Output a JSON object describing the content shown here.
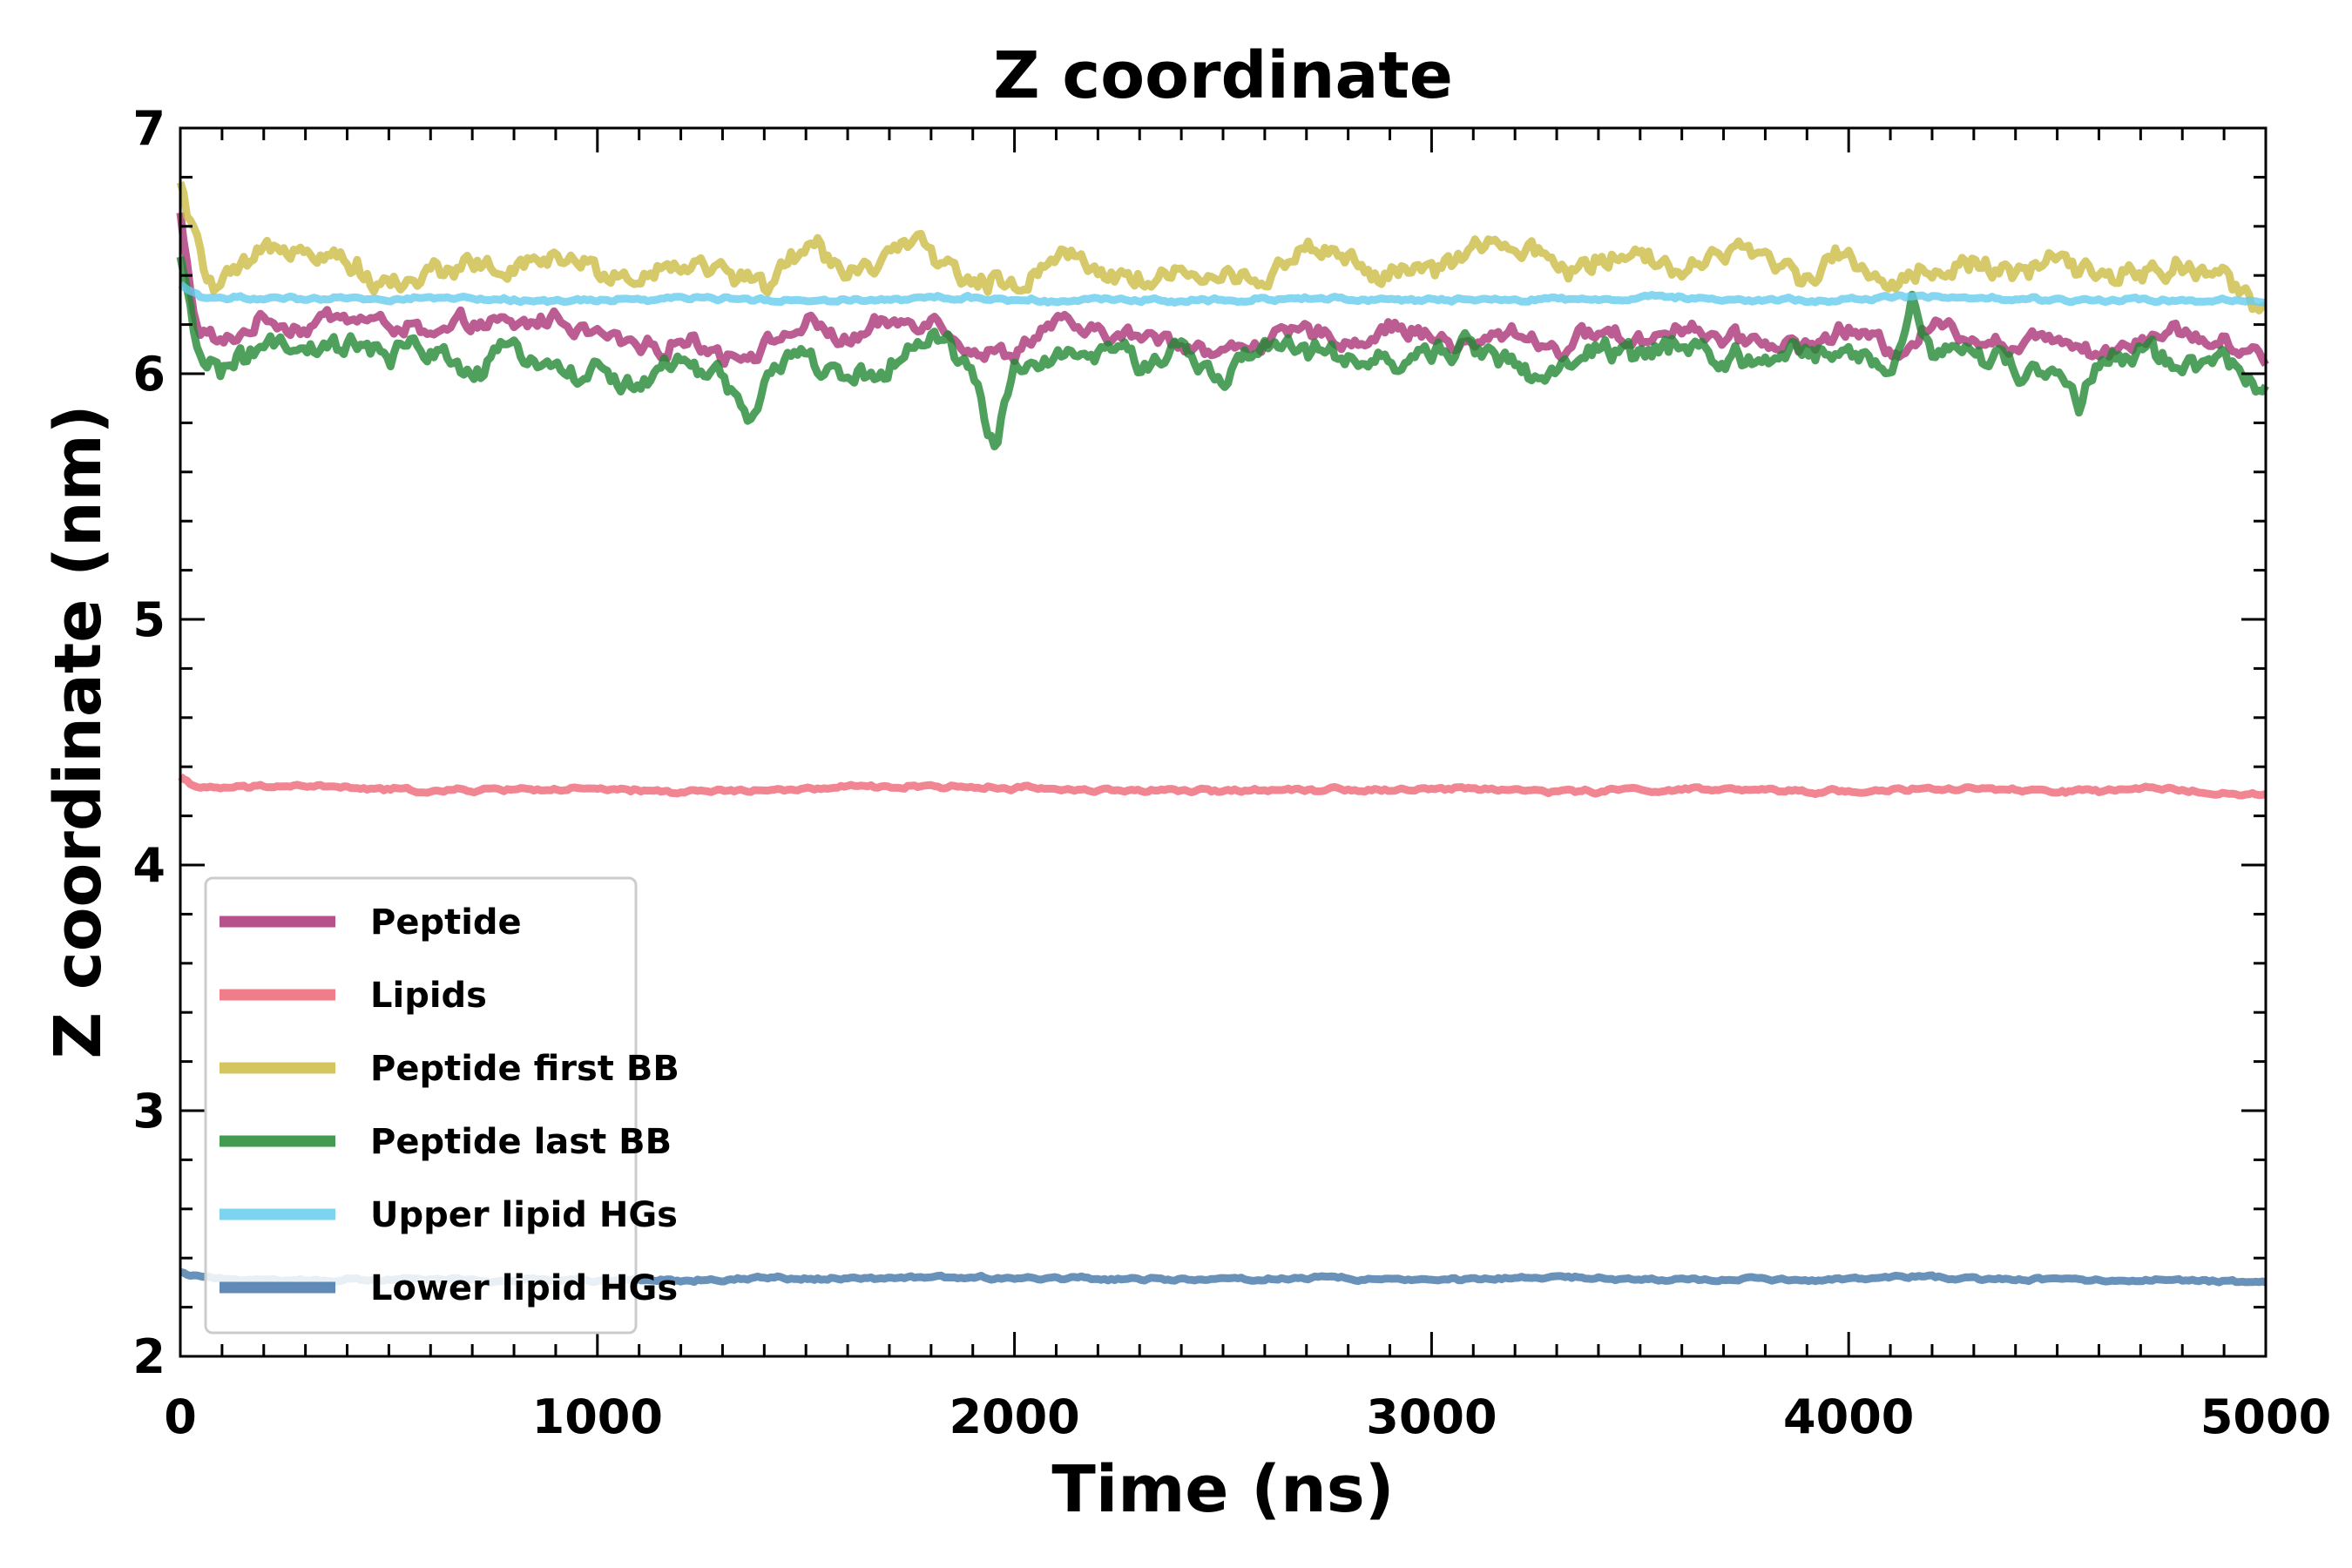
{
  "chart_data": {
    "type": "line",
    "title": "Z coordinate",
    "xlabel": "Time (ns)",
    "ylabel": "Z coordinate (nm)",
    "xlim": [
      0,
      5000
    ],
    "ylim": [
      2,
      7
    ],
    "x_ticks": [
      "0",
      "1000",
      "2000",
      "3000",
      "4000",
      "5000"
    ],
    "y_ticks": [
      "2",
      "3",
      "4",
      "5",
      "6",
      "7"
    ],
    "legend_position": "lower-left",
    "series": [
      {
        "name": "Peptide",
        "color": "#aa3377",
        "x": [
          0,
          10,
          40,
          100,
          200,
          300,
          400,
          500,
          600,
          700,
          800,
          900,
          1000,
          1100,
          1200,
          1300,
          1400,
          1500,
          1600,
          1700,
          1800,
          1900,
          2000,
          2100,
          2200,
          2300,
          2400,
          2500,
          2600,
          2700,
          2800,
          2900,
          3000,
          3100,
          3200,
          3300,
          3400,
          3500,
          3600,
          3700,
          3800,
          3900,
          4000,
          4100,
          4200,
          4300,
          4400,
          4500,
          4600,
          4700,
          4800,
          4900,
          5000
        ],
        "values": [
          6.65,
          6.5,
          6.2,
          6.12,
          6.22,
          6.18,
          6.25,
          6.2,
          6.15,
          6.2,
          6.18,
          6.23,
          6.17,
          6.12,
          6.15,
          6.08,
          6.12,
          6.2,
          6.12,
          6.18,
          6.22,
          6.1,
          6.06,
          6.2,
          6.16,
          6.15,
          6.12,
          6.09,
          6.14,
          6.16,
          6.12,
          6.18,
          6.15,
          6.12,
          6.18,
          6.1,
          6.18,
          6.12,
          6.2,
          6.16,
          6.15,
          6.12,
          6.18,
          6.1,
          6.2,
          6.16,
          6.12,
          6.18,
          6.09,
          6.15,
          6.18,
          6.12,
          6.05
        ]
      },
      {
        "name": "Lipids",
        "color": "#ee6677",
        "x": [
          0,
          50,
          300,
          600,
          900,
          1200,
          1500,
          1800,
          2100,
          2400,
          2700,
          3000,
          3300,
          3600,
          3900,
          4200,
          4500,
          4800,
          5000
        ],
        "values": [
          4.36,
          4.31,
          4.32,
          4.3,
          4.31,
          4.3,
          4.31,
          4.32,
          4.31,
          4.3,
          4.31,
          4.31,
          4.3,
          4.31,
          4.3,
          4.31,
          4.3,
          4.31,
          4.28
        ]
      },
      {
        "name": "Peptide first BB",
        "color": "#ccbb44",
        "x": [
          0,
          10,
          30,
          80,
          200,
          300,
          400,
          500,
          600,
          700,
          800,
          900,
          1000,
          1100,
          1200,
          1300,
          1400,
          1500,
          1600,
          1700,
          1800,
          1900,
          2000,
          2100,
          2200,
          2300,
          2400,
          2500,
          2600,
          2700,
          2800,
          2900,
          3000,
          3100,
          3200,
          3300,
          3400,
          3500,
          3600,
          3700,
          3800,
          3900,
          4000,
          4100,
          4200,
          4300,
          4400,
          4500,
          4600,
          4700,
          4800,
          4900,
          5000
        ],
        "values": [
          6.75,
          6.7,
          6.55,
          6.35,
          6.45,
          6.55,
          6.45,
          6.35,
          6.4,
          6.48,
          6.42,
          6.5,
          6.44,
          6.38,
          6.45,
          6.4,
          6.35,
          6.5,
          6.42,
          6.48,
          6.5,
          6.38,
          6.35,
          6.5,
          6.44,
          6.4,
          6.42,
          6.36,
          6.4,
          6.5,
          6.46,
          6.4,
          6.42,
          6.48,
          6.5,
          6.42,
          6.46,
          6.52,
          6.4,
          6.5,
          6.44,
          6.4,
          6.48,
          6.36,
          6.42,
          6.46,
          6.4,
          6.45,
          6.38,
          6.42,
          6.45,
          6.38,
          6.28
        ]
      },
      {
        "name": "Peptide last BB",
        "color": "#228833",
        "x": [
          0,
          10,
          40,
          100,
          200,
          300,
          400,
          500,
          600,
          700,
          800,
          900,
          1000,
          1100,
          1200,
          1300,
          1360,
          1400,
          1500,
          1600,
          1700,
          1800,
          1900,
          1950,
          2000,
          2100,
          2200,
          2300,
          2400,
          2500,
          2600,
          2700,
          2800,
          2900,
          3000,
          3100,
          3200,
          3300,
          3400,
          3500,
          3600,
          3700,
          3800,
          3900,
          4000,
          4100,
          4150,
          4200,
          4300,
          4400,
          4500,
          4550,
          4600,
          4700,
          4800,
          4900,
          5000
        ],
        "values": [
          6.45,
          6.35,
          6.1,
          6.02,
          6.1,
          6.08,
          6.12,
          6.05,
          6.1,
          6.0,
          6.1,
          6.05,
          6.0,
          5.95,
          6.05,
          6.0,
          5.82,
          6.0,
          6.1,
          5.95,
          6.05,
          6.15,
          6.0,
          5.72,
          6.0,
          6.1,
          6.12,
          6.05,
          6.1,
          6.0,
          6.08,
          6.1,
          6.02,
          6.05,
          6.08,
          6.1,
          6.05,
          5.98,
          6.1,
          6.05,
          6.12,
          6.0,
          6.05,
          6.08,
          6.1,
          6.02,
          6.35,
          6.1,
          6.08,
          6.02,
          5.98,
          5.85,
          6.0,
          6.08,
          6.02,
          6.05,
          5.98
        ]
      },
      {
        "name": "Upper lipid HGs",
        "color": "#66ccee",
        "x": [
          0,
          50,
          300,
          600,
          900,
          1200,
          1500,
          1800,
          2100,
          2400,
          2700,
          3000,
          3300,
          3600,
          3900,
          4200,
          4500,
          4800,
          5000
        ],
        "values": [
          6.36,
          6.31,
          6.3,
          6.31,
          6.3,
          6.31,
          6.3,
          6.31,
          6.3,
          6.3,
          6.31,
          6.3,
          6.3,
          6.31,
          6.3,
          6.31,
          6.3,
          6.3,
          6.29
        ]
      },
      {
        "name": "Lower lipid HGs",
        "color": "#4477aa",
        "x": [
          0,
          50,
          300,
          600,
          900,
          1200,
          1500,
          1800,
          2100,
          2400,
          2700,
          3000,
          3300,
          3600,
          3900,
          4200,
          4500,
          4800,
          5000
        ],
        "values": [
          2.34,
          2.32,
          2.31,
          2.32,
          2.31,
          2.31,
          2.32,
          2.32,
          2.32,
          2.31,
          2.32,
          2.31,
          2.32,
          2.31,
          2.31,
          2.32,
          2.31,
          2.31,
          2.3
        ]
      }
    ]
  }
}
